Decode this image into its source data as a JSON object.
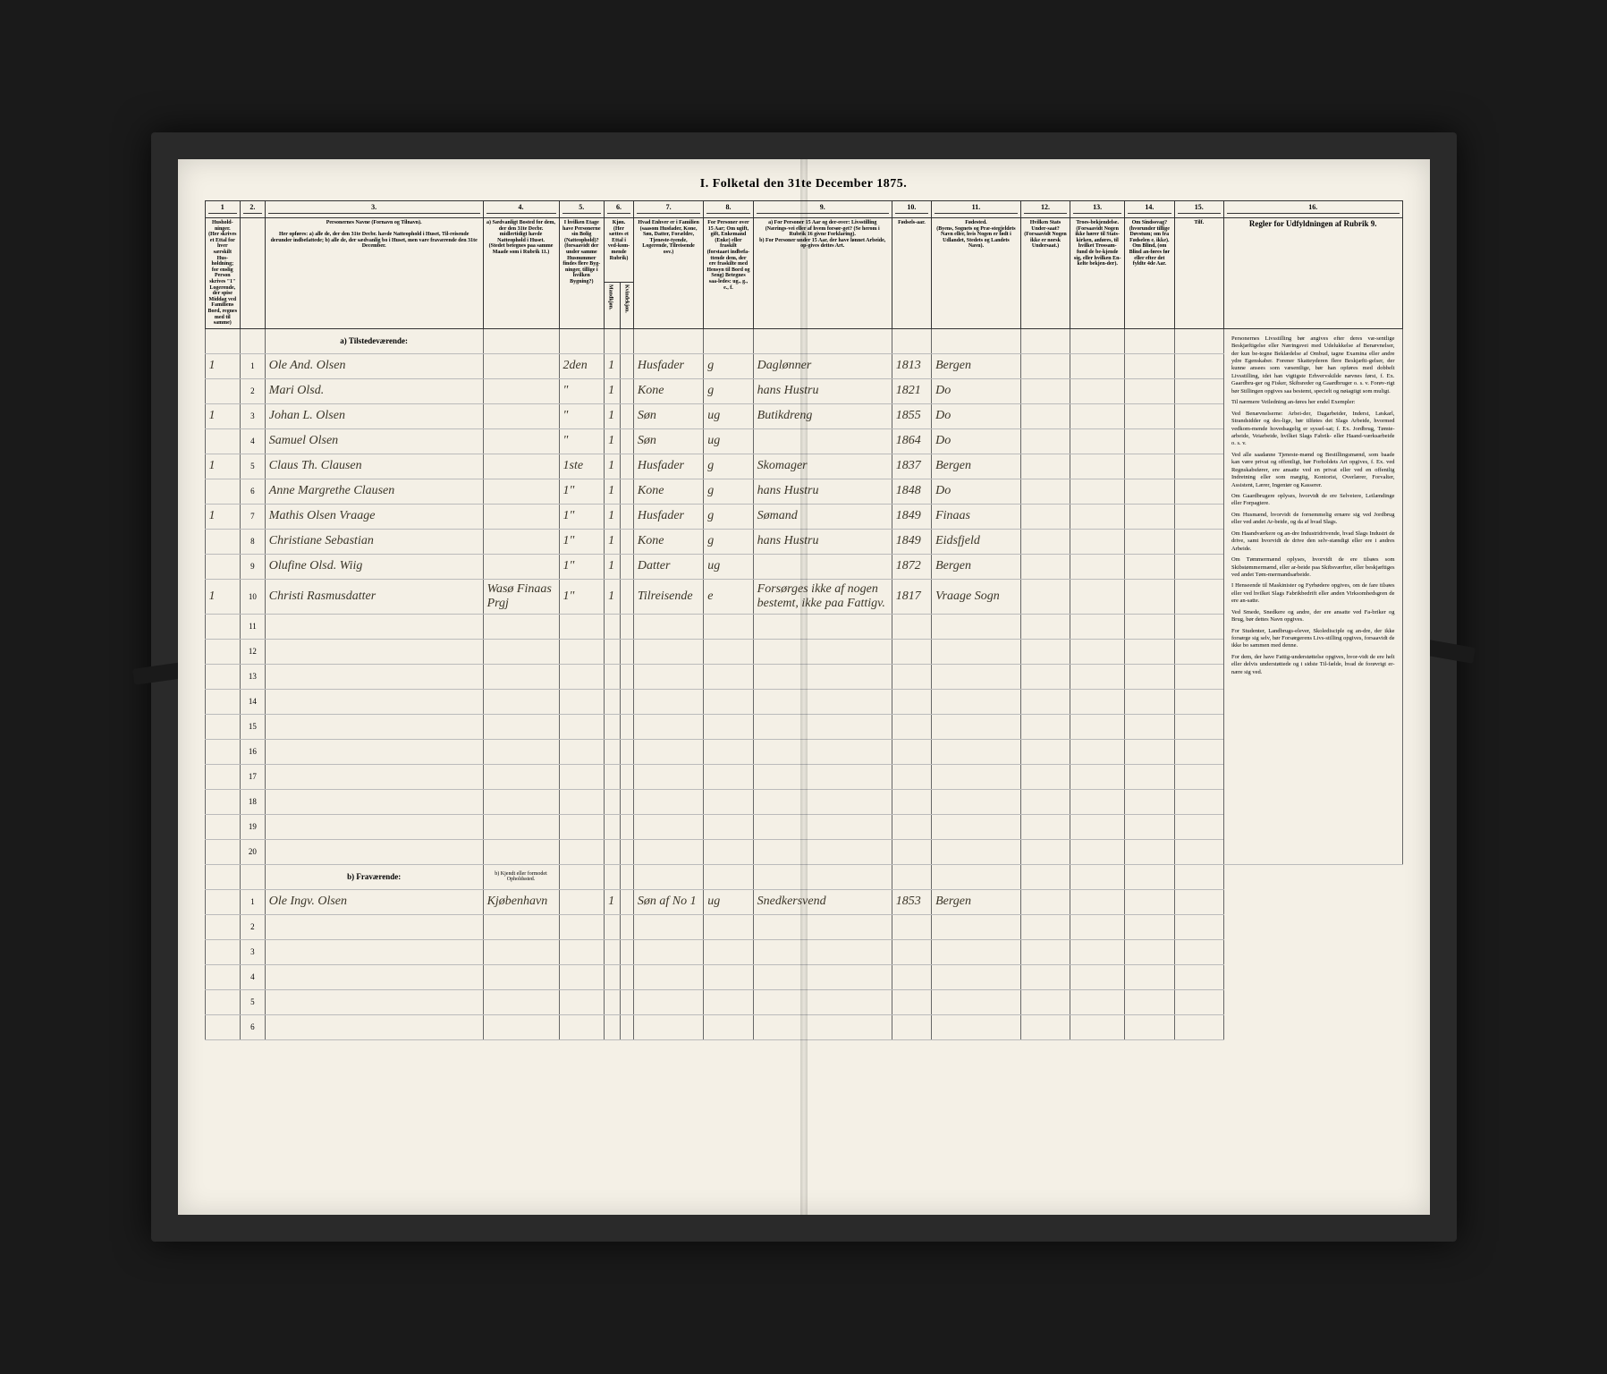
{
  "title": "I. Folketal den 31te December 1875.",
  "columns": {
    "c1": "1",
    "c2": "2.",
    "c3": "3.",
    "c4": "4.",
    "c5": "5.",
    "c6": "6.",
    "c7": "7.",
    "c8": "8.",
    "c9": "9.",
    "c10": "10.",
    "c11": "11.",
    "c12": "12.",
    "c13": "13.",
    "c14": "14.",
    "c15": "15.",
    "c16": "16."
  },
  "headers": {
    "household": "Hushold-ninger.",
    "household_sub": "(Her skrives et Ettal for hver særskilt Hus-holdning; for enslig Person skrives \"1\" Logerende, der spise Middag ved Familiens Bord, regnes med til samme)",
    "names": "Personernes Navne (Fornavn og Tilnavn).",
    "names_sub": "Her opføres:\na) alle de, der den 31te Decbr. havde Natteophold i Huset, Til-reisende derunder indbefattede;\nb) alle de, der sædvanlig bo i Huset, men vare fraværende den 31te December.",
    "residence": "a) Sædvanligt Bosted for dem, der den 31te Decbr. midlertidigt havde Natteophold i Huset.",
    "residence_sub": "(Stedet betegnes paa samme Maade som i Rubrik 11.)",
    "floor": "I hvilken Etage have Personerne sin Bolig (Natteophold)?",
    "floor_sub": "(forsaavidt der under samme Husnummer findes flere Byg-ninger, tillige i hvilken Bygning?)",
    "sex": "Kjøn.",
    "sex_sub": "(Her sættes et Ettal i ved-kom-mende Rubrik)",
    "sex_m": "Mandkjøn.",
    "sex_f": "Kvindekjøn.",
    "family": "Hvad Enhver er i Familien",
    "family_sub": "(saasom Husfader, Kone, Søn, Datter, Forældre, Tjeneste-tyende, Logerende, Tilreisende osv.)",
    "marital": "For Personer over 15 Aar; Om ugift, gift, Enkemand (Enke) eller fraskilt",
    "marital_sub": "(forstaaet indbefa-ttende dem, der ere fraskilte med Hensyn til Bord og Seng) Betegnes saa-ledes: ug., g., e., f.",
    "occupation": "a) For Personer 15 Aar og der-over: Livsstilling (Nærings-vei eller af hvem forsør-get? (Se herom i Rubrik 16 givne Forklaring).",
    "occupation_sub": "b) For Personer under 15 Aar, der have lønnet Arbeide, op-gives dettes Art.",
    "year": "Fødsels-aar.",
    "birthplace": "Fødested.",
    "birthplace_sub": "(Byens, Sognets og Præ-stegjeldets Navn eller, hvis Nogen er født i Udlandet, Stedets og Landets Navn).",
    "nation": "Hvilken Stats Under-saat?",
    "nation_sub": "(Forsaavidt Nogen ikke er norsk Undersaat.)",
    "religion": "Troes-bekjendelse.",
    "religion_sub": "(Forsaavidt Nogen ikke hører til Stats-kirken, anføres, til hvilket Trossam-fund de be-kjende sig, eller hvilken En-kelte bekjen-der).",
    "deaf": "Om Sindssvag?",
    "deaf_sub": "(hvorunder tillige Døvstum; om fra Fødselen e. ikke). Om Blind, (om Blind an-føres før eller efter det fyldte 4de Aar.",
    "insane": "Tilf.",
    "rules": "Regler for Udfyldningen af Rubrik 9."
  },
  "sections": {
    "present": "a) Tilstedeværende:",
    "absent": "b) Fraværende:",
    "absent_col4": "b) Kjendt eller formodet Opholdssted."
  },
  "rows": [
    {
      "h": "1",
      "n": "1",
      "name": "Ole And. Olsen",
      "res": "",
      "fl": "2den",
      "sx": "1",
      "fam": "Husfader",
      "mar": "g",
      "occ": "Daglønner",
      "yr": "1813",
      "bp": "Bergen"
    },
    {
      "h": "",
      "n": "2",
      "name": "Mari Olsd.",
      "res": "",
      "fl": "\"",
      "sx": "1",
      "fam": "Kone",
      "mar": "g",
      "occ": "hans Hustru",
      "yr": "1821",
      "bp": "Do"
    },
    {
      "h": "1",
      "n": "3",
      "name": "Johan L. Olsen",
      "res": "",
      "fl": "\"",
      "sx": "1",
      "fam": "Søn",
      "mar": "ug",
      "occ": "Butikdreng",
      "yr": "1855",
      "bp": "Do"
    },
    {
      "h": "",
      "n": "4",
      "name": "Samuel Olsen",
      "res": "",
      "fl": "\"",
      "sx": "1",
      "fam": "Søn",
      "mar": "ug",
      "occ": "",
      "yr": "1864",
      "bp": "Do"
    },
    {
      "h": "1",
      "n": "5",
      "name": "Claus Th. Clausen",
      "res": "",
      "fl": "1ste",
      "sx": "1",
      "fam": "Husfader",
      "mar": "g",
      "occ": "Skomager",
      "yr": "1837",
      "bp": "Bergen"
    },
    {
      "h": "",
      "n": "6",
      "name": "Anne Margrethe Clausen",
      "res": "",
      "fl": "1\"",
      "sx": "1",
      "fam": "Kone",
      "mar": "g",
      "occ": "hans Hustru",
      "yr": "1848",
      "bp": "Do"
    },
    {
      "h": "1",
      "n": "7",
      "name": "Mathis Olsen Vraage",
      "res": "",
      "fl": "1\"",
      "sx": "1",
      "fam": "Husfader",
      "mar": "g",
      "occ": "Sømand",
      "yr": "1849",
      "bp": "Finaas"
    },
    {
      "h": "",
      "n": "8",
      "name": "Christiane Sebastian",
      "res": "",
      "fl": "1\"",
      "sx": "1",
      "fam": "Kone",
      "mar": "g",
      "occ": "hans Hustru",
      "yr": "1849",
      "bp": "Eidsfjeld"
    },
    {
      "h": "",
      "n": "9",
      "name": "Olufine Olsd. Wiig",
      "res": "",
      "fl": "1\"",
      "sx": "1",
      "fam": "Datter",
      "mar": "ug",
      "occ": "",
      "yr": "1872",
      "bp": "Bergen"
    },
    {
      "h": "1",
      "n": "10",
      "name": "Christi Rasmusdatter",
      "res": "Wasø Finaas Prgj",
      "fl": "1\"",
      "sx": "1",
      "fam": "Tilreisende",
      "mar": "e",
      "occ": "Forsørges ikke af nogen bestemt, ikke paa Fattigv.",
      "yr": "1817",
      "bp": "Vraage Sogn"
    },
    {
      "h": "",
      "n": "11",
      "name": "",
      "res": "",
      "fl": "",
      "sx": "",
      "fam": "",
      "mar": "",
      "occ": "",
      "yr": "",
      "bp": ""
    },
    {
      "h": "",
      "n": "12",
      "name": "",
      "res": "",
      "fl": "",
      "sx": "",
      "fam": "",
      "mar": "",
      "occ": "",
      "yr": "",
      "bp": ""
    },
    {
      "h": "",
      "n": "13",
      "name": "",
      "res": "",
      "fl": "",
      "sx": "",
      "fam": "",
      "mar": "",
      "occ": "",
      "yr": "",
      "bp": ""
    },
    {
      "h": "",
      "n": "14",
      "name": "",
      "res": "",
      "fl": "",
      "sx": "",
      "fam": "",
      "mar": "",
      "occ": "",
      "yr": "",
      "bp": ""
    },
    {
      "h": "",
      "n": "15",
      "name": "",
      "res": "",
      "fl": "",
      "sx": "",
      "fam": "",
      "mar": "",
      "occ": "",
      "yr": "",
      "bp": ""
    },
    {
      "h": "",
      "n": "16",
      "name": "",
      "res": "",
      "fl": "",
      "sx": "",
      "fam": "",
      "mar": "",
      "occ": "",
      "yr": "",
      "bp": ""
    },
    {
      "h": "",
      "n": "17",
      "name": "",
      "res": "",
      "fl": "",
      "sx": "",
      "fam": "",
      "mar": "",
      "occ": "",
      "yr": "",
      "bp": ""
    },
    {
      "h": "",
      "n": "18",
      "name": "",
      "res": "",
      "fl": "",
      "sx": "",
      "fam": "",
      "mar": "",
      "occ": "",
      "yr": "",
      "bp": ""
    },
    {
      "h": "",
      "n": "19",
      "name": "",
      "res": "",
      "fl": "",
      "sx": "",
      "fam": "",
      "mar": "",
      "occ": "",
      "yr": "",
      "bp": ""
    },
    {
      "h": "",
      "n": "20",
      "name": "",
      "res": "",
      "fl": "",
      "sx": "",
      "fam": "",
      "mar": "",
      "occ": "",
      "yr": "",
      "bp": ""
    }
  ],
  "absent_rows": [
    {
      "h": "",
      "n": "1",
      "name": "Ole Ingv. Olsen",
      "res": "Kjøbenhavn",
      "fl": "",
      "sx": "1",
      "fam": "Søn af No 1",
      "mar": "ug",
      "occ": "Snedkersvend",
      "yr": "1853",
      "bp": "Bergen"
    },
    {
      "h": "",
      "n": "2",
      "name": "",
      "res": "",
      "fl": "",
      "sx": "",
      "fam": "",
      "mar": "",
      "occ": "",
      "yr": "",
      "bp": ""
    },
    {
      "h": "",
      "n": "3",
      "name": "",
      "res": "",
      "fl": "",
      "sx": "",
      "fam": "",
      "mar": "",
      "occ": "",
      "yr": "",
      "bp": ""
    },
    {
      "h": "",
      "n": "4",
      "name": "",
      "res": "",
      "fl": "",
      "sx": "",
      "fam": "",
      "mar": "",
      "occ": "",
      "yr": "",
      "bp": ""
    },
    {
      "h": "",
      "n": "5",
      "name": "",
      "res": "",
      "fl": "",
      "sx": "",
      "fam": "",
      "mar": "",
      "occ": "",
      "yr": "",
      "bp": ""
    },
    {
      "h": "",
      "n": "6",
      "name": "",
      "res": "",
      "fl": "",
      "sx": "",
      "fam": "",
      "mar": "",
      "occ": "",
      "yr": "",
      "bp": ""
    }
  ],
  "rules_paragraphs": [
    "Personernes Livsstilling bør angives efter deres væ-sentlige Beskjæftigelse eller Næringsvei med Udelukkelse af Benævnelser, der kun be-tegne Beklædelse af Ombud, tagne Examina eller andre ydre Egenskaber. Forener Skatteyderen flere Beskjæfti-gelser, der kunne ansees som væsentlige, bør han opføres med dobbelt Livsstilling, idet han vigtigste Erhvervskilde nævnes først, f. Ex. Gaardbru-ger og Fisker, Skibsreder og Gaardbruger o. s. v. Forøv-rigt bør Stillingen opgives saa bestemt, specielt og nøiagtigt som muligt.",
    "Til nærmere Veiledning an-føres her endel Exempler:",
    "Ved Benævnelserne: Arbei-der, Dagarbeider, Inderst, Løskarl, Strandsidder og des-lige, bør tilføies det Slags Arbeide, hvormed vedkom-mende hovedsagelig er syssel-sat; f. Ex. Jordbrug, Tømte-arbeide, Veiarbeide, hvilket Slags Fabrik- eller Haand-værksarbeide o. s. v.",
    "Ved alle saadanne Tjeneste-mænd og Bestillingsmænd, som baade kan være privat og offentligt, bør Forholdets Art opgives, f. Ex. ved Regnskabsfører, ere ansatte ved en privat eller ved en offentlig Indretning eller som mægtig, Kontorist, Overlærer, Forvalter, Assistent, Lærer, Ingeniør og Kasserer.",
    "Om Gaardbrugere oplyses, hvorvidt de ere Selveiere, Leilændinge eller Forpagtere.",
    "Om Husmænd, hvorvidt de fornemmelig ernære sig ved Jordbrug eller ved andet Ar-beide, og da af hvad Slags.",
    "Om Haandværkere og an-dre Industridrivende, hvad Slags Industri de drive, samt hvorvidt de drive den selv-stændigt eller ere i andres Arbeide.",
    "Om Tømmermænd oplyses, hvorvidt de ere tilsøes som Skibstømmermænd, eller ar-beide paa Skibsværfter, eller beskjæftiges ved andet Tøm-mermandsarbeide.",
    "I Henseende til Maskinister og Fyrbødere opgives, om de fare tilsøes eller ved hvilket Slags Fabrikbedrift eller anden Virksomhedsgren de ere an-satte.",
    "Ved Smede, Snedkere og andre, der ere ansatte ved Fa-briker og Brug, bør dettes Navn opgives.",
    "For Studenter, Landbrugs-elever, Skoledisciple og an-dre, der ikke forsørge sig selv, bør Forsørgerens Livs-stilling opgives, forsaavidt de ikke bo sammen med denne.",
    "For dem, der have Fattig-understøttelse opgives, hvor-vidt de ere helt eller delvis understøttede og i sidste Til-fælde, hvad de forøvrigt er-nære sig ved."
  ]
}
